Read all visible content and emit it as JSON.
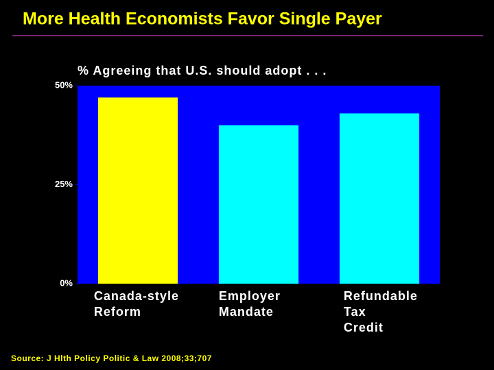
{
  "chart_data": {
    "type": "bar",
    "title": "More Health Economists Favor Single Payer",
    "subtitle": "% Agreeing that U.S. should adopt . . .",
    "categories": [
      "Canada-style\nReform",
      "Employer\nMandate",
      "Refundable\nTax\nCredit"
    ],
    "values": [
      47,
      40,
      43
    ],
    "colors": [
      "#ffff00",
      "#00ffff",
      "#00ffff"
    ],
    "plot_background": "#0000ff",
    "ylim": [
      0,
      50
    ],
    "yticks": [
      {
        "value": 0,
        "label": "0%"
      },
      {
        "value": 25,
        "label": "25%"
      },
      {
        "value": 50,
        "label": "50%"
      }
    ],
    "source": "Source: J Hlth Policy Politic & Law 2008;33;707"
  }
}
